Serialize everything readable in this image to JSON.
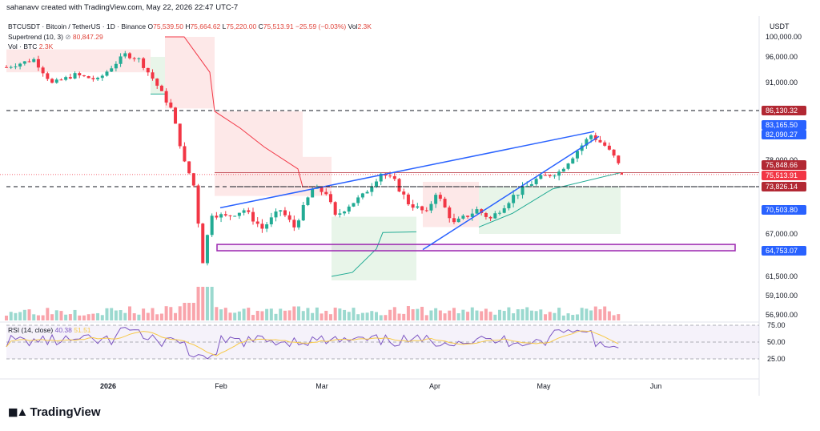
{
  "header": {
    "text": "sahanavv created with TradingView.com, May 22, 2026 22:47 UTC-7"
  },
  "legend": {
    "symbol": "BTCUSDT · Bitcoin / TetherUS · 1D · Binance",
    "o_label": "O",
    "o_value": "75,539.50",
    "h_label": "H",
    "h_value": "75,664.62",
    "l_label": "L",
    "l_value": "75,220.00",
    "c_label": "C",
    "c_value": "75,513.91",
    "change": "−25.59 (−0.03%)",
    "vol_label": "Vol",
    "vol_value": "2.3K",
    "supertrend_label": "Supertrend (10, 3)",
    "supertrend_icon": "eye-slash-icon",
    "supertrend_value": "80,847.29",
    "vol_btc_label": "Vol · BTC",
    "vol_btc_value": "2.3K"
  },
  "price_axis": {
    "currency": "USDT"
  },
  "rsi": {
    "label": "RSI (14, close)",
    "value": "40.38",
    "ma_value": "51.51"
  },
  "brand": {
    "logo_text": "TradingView"
  },
  "colors": {
    "up": "#22ab94",
    "down": "#f23645",
    "trendline": "#2962ff",
    "zone": "#9c27b0",
    "st_up_fill": "#e8f5e9",
    "st_down_fill": "#fde8e8",
    "rsi": "#7e57c2",
    "rsi_ma": "#f7c948"
  },
  "chart_data": {
    "type": "candlestick",
    "symbol": "BTCUSDT",
    "interval": "1D",
    "y_ticks": [
      100000,
      96000,
      91000,
      82000,
      78000,
      67000,
      61500,
      59100,
      56900
    ],
    "y_tick_labels": [
      "100,000.00",
      "96,000.00",
      "91,000.00",
      "82,000.00",
      "78,000.00",
      "67,000.00",
      "61,500.00",
      "59,100.00",
      "56,900.00"
    ],
    "x_tick_labels": [
      "2026",
      "Feb",
      "Mar",
      "Apr",
      "May",
      "Jun"
    ],
    "price_tags": [
      {
        "label": "86,130.32",
        "value": 86130.32,
        "color": "#b22833"
      },
      {
        "label": "83,165.50",
        "value": 83165.5,
        "color": "#2962ff"
      },
      {
        "label": "82,090.27",
        "value": 82090.27,
        "color": "#2962ff"
      },
      {
        "label": "75,848.66",
        "value": 75848.66,
        "color": "#b22833"
      },
      {
        "label": "75,513.91",
        "value": 75513.91,
        "color": "#f23645"
      },
      {
        "label": "73,826.14",
        "value": 73826.14,
        "color": "#b22833"
      },
      {
        "label": "70,503.80",
        "value": 70503.8,
        "color": "#2962ff"
      },
      {
        "label": "64,753.07",
        "value": 64753.07,
        "color": "#2962ff"
      }
    ],
    "horizontal_levels": [
      86130.32,
      73826.14
    ],
    "support_zone": [
      64753.07,
      65600
    ],
    "rsi_ticks": [
      75,
      50,
      25
    ],
    "rsi_tick_labels": [
      "75.00",
      "50.00",
      "25.00"
    ],
    "last": {
      "open": 75539.5,
      "high": 75664.62,
      "low": 75220.0,
      "close": 75513.91,
      "change": -25.59,
      "change_pct": -0.03
    },
    "supertrend_value": 80847.29,
    "rsi_value": 40.38,
    "rsi_ma_value": 51.51
  }
}
